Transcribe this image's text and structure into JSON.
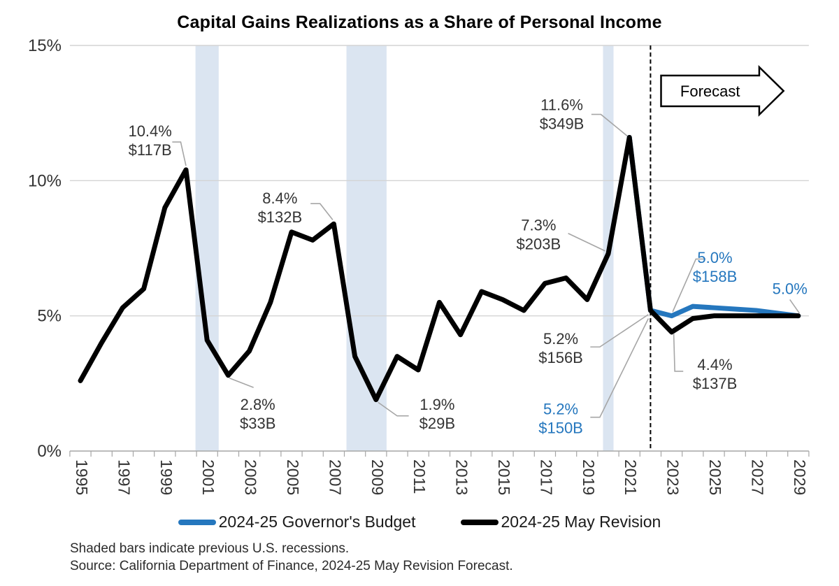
{
  "title": "Capital Gains Realizations as a Share of Personal Income",
  "colors": {
    "blue": "#2577be",
    "black": "#000000",
    "annotation_text_dark": "#333333",
    "recession_band": "#dbe5f1",
    "gridline": "#d4d4d4",
    "axis": "#a6a6a6",
    "leader": "#a6a6a6",
    "tick_label": "#333333"
  },
  "chart_data": {
    "type": "line",
    "title": "Capital Gains Realizations as a Share of Personal Income",
    "xlabel": "",
    "ylabel": "",
    "x_start": 1995,
    "x_end": 2029,
    "ylim": [
      0,
      15
    ],
    "yticks": [
      [
        0,
        "0%"
      ],
      [
        5,
        "5%"
      ],
      [
        10,
        "10%"
      ],
      [
        15,
        "15%"
      ]
    ],
    "xtick_labels": [
      "1995",
      "1997",
      "1999",
      "2001",
      "2003",
      "2005",
      "2007",
      "2009",
      "2011",
      "2013",
      "2015",
      "2017",
      "2019",
      "2021",
      "2023",
      "2025",
      "2027",
      "2029"
    ],
    "series": [
      {
        "name": "2024-25 Governor's Budget",
        "color": "#2577be",
        "x_start": 2021,
        "values": [
          11.6,
          5.2,
          5.0,
          5.35,
          5.3,
          5.25,
          5.2,
          5.1,
          5.0
        ]
      },
      {
        "name": "2024-25 May Revision",
        "color": "#000000",
        "x_start": 1995,
        "values": [
          2.6,
          4.0,
          5.3,
          6.0,
          9.0,
          10.4,
          4.1,
          2.8,
          3.7,
          5.5,
          8.1,
          7.8,
          8.4,
          3.5,
          1.9,
          3.5,
          3.0,
          5.5,
          4.3,
          5.9,
          5.6,
          5.2,
          6.2,
          6.4,
          5.6,
          7.3,
          11.6,
          5.2,
          4.4,
          4.9,
          5.0,
          5.0,
          5.0,
          5.0,
          5.0
        ]
      }
    ],
    "recession_bands": [
      [
        2000.45,
        2001.55
      ],
      [
        2007.6,
        2009.5
      ],
      [
        2019.75,
        2020.25
      ]
    ],
    "forecast_divider_year": 2022,
    "forecast": {
      "label": "Forecast",
      "x0_year": 2022.5,
      "x1_year": 2027.15,
      "tip_year": 2028.3,
      "y_center_pct": 13.32
    },
    "annotations": [
      {
        "lines": [
          "10.4%",
          "$117B"
        ],
        "color": "black",
        "label_pos": [
          1998.3,
          11.48
        ],
        "leader": [
          [
            1999.35,
            11.43
          ],
          [
            1999.75,
            11.43
          ],
          [
            2000.0,
            10.55
          ]
        ]
      },
      {
        "lines": [
          "8.4%",
          "$132B"
        ],
        "color": "black",
        "label_pos": [
          2004.45,
          9.0
        ],
        "leader": [
          [
            2005.9,
            9.15
          ],
          [
            2006.35,
            9.15
          ],
          [
            2006.95,
            8.55
          ]
        ]
      },
      {
        "lines": [
          "2.8%",
          "$33B"
        ],
        "color": "black",
        "label_pos": [
          2003.4,
          1.37
        ],
        "leader": [
          [
            2002.05,
            2.7
          ],
          [
            2003.2,
            2.35
          ]
        ]
      },
      {
        "lines": [
          "1.9%",
          "$29B"
        ],
        "color": "black",
        "label_pos": [
          2011.9,
          1.37
        ],
        "leader": [
          [
            2009.1,
            1.8
          ],
          [
            2010.0,
            1.3
          ],
          [
            2010.55,
            1.3
          ]
        ]
      },
      {
        "lines": [
          "7.3%",
          "$203B"
        ],
        "color": "black",
        "label_pos": [
          2016.7,
          8.0
        ],
        "leader": [
          [
            2018.1,
            8.05
          ],
          [
            2019.85,
            7.4
          ]
        ]
      },
      {
        "lines": [
          "11.6%",
          "$349B"
        ],
        "color": "black",
        "label_pos": [
          2017.8,
          12.45
        ],
        "leader": [
          [
            2019.2,
            12.45
          ],
          [
            2019.65,
            12.45
          ],
          [
            2020.9,
            11.65
          ]
        ]
      },
      {
        "lines": [
          "5.2%",
          "$156B"
        ],
        "color": "black",
        "label_pos": [
          2017.75,
          3.8
        ],
        "leader": [
          [
            2019.15,
            3.85
          ],
          [
            2019.6,
            3.85
          ],
          [
            2021.9,
            5.05
          ]
        ]
      },
      {
        "lines": [
          "5.2%",
          "$150B"
        ],
        "color": "blue",
        "label_pos": [
          2017.75,
          1.2
        ],
        "leader": [
          [
            2019.15,
            1.25
          ],
          [
            2019.6,
            1.25
          ],
          [
            2021.9,
            4.9
          ]
        ]
      },
      {
        "lines": [
          "5.0%",
          "$158B"
        ],
        "color": "blue",
        "label_pos": [
          2025.05,
          6.8
        ],
        "leader": [
          [
            2024.6,
            7.1
          ],
          [
            2024.15,
            7.1
          ],
          [
            2023.05,
            5.15
          ]
        ]
      },
      {
        "lines": [
          "4.4%",
          "$137B"
        ],
        "color": "black",
        "label_pos": [
          2025.05,
          2.85
        ],
        "leader": [
          [
            2023.1,
            4.35
          ],
          [
            2023.15,
            2.95
          ],
          [
            2023.55,
            2.95
          ]
        ]
      },
      {
        "lines": [
          "5.0%"
        ],
        "color": "blue",
        "label_pos": [
          2028.6,
          6.0
        ],
        "leader": [
          [
            2028.6,
            5.6
          ],
          [
            2029.05,
            5.1
          ]
        ]
      }
    ]
  },
  "legend": {
    "items": [
      {
        "label": "2024-25 Governor's Budget",
        "color": "#2577be"
      },
      {
        "label": "2024-25 May Revision",
        "color": "#000000"
      }
    ]
  },
  "footnotes": [
    "Shaded bars indicate previous U.S. recessions.",
    "Source: California Department of Finance, 2024-25 May Revision Forecast."
  ]
}
